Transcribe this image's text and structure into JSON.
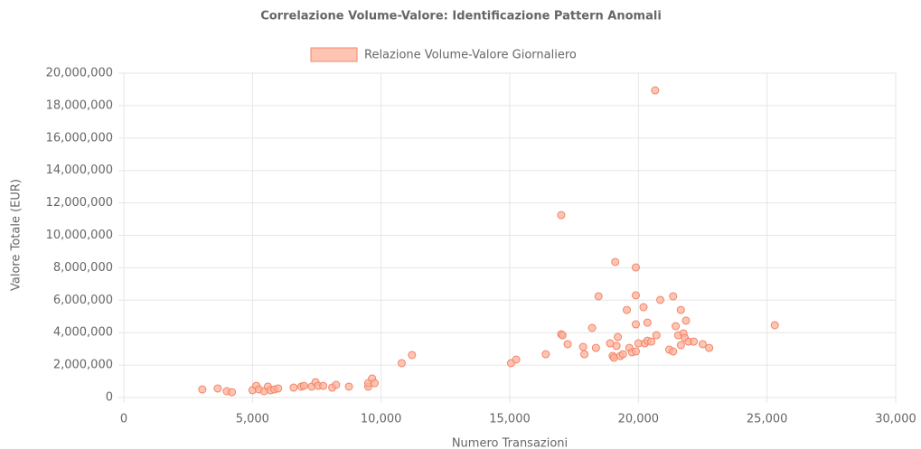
{
  "chart_data": {
    "type": "scatter",
    "title": "Correlazione Volume-Valore: Identificazione Pattern Anomali",
    "x_label": "Numero Transazioni",
    "y_label": "Valore Totale (EUR)",
    "x": [
      3050,
      3650,
      4000,
      4200,
      5000,
      5150,
      5250,
      5450,
      5600,
      5700,
      5850,
      6000,
      6600,
      6900,
      7000,
      7300,
      7450,
      7550,
      7750,
      8100,
      8250,
      8750,
      9500,
      9500,
      9650,
      9750,
      10800,
      11200,
      15050,
      15250,
      16400,
      17000,
      17000,
      17050,
      17250,
      17850,
      17900,
      18200,
      18350,
      18450,
      18900,
      19000,
      19100,
      19050,
      19150,
      19200,
      19300,
      19400,
      19550,
      19650,
      19750,
      19900,
      19900,
      19900,
      19900,
      20000,
      20200,
      20250,
      20350,
      20350,
      20500,
      20650,
      20700,
      20850,
      21200,
      21350,
      21350,
      21450,
      21550,
      21650,
      21650,
      21750,
      21800,
      21850,
      21950,
      22150,
      22500,
      22750,
      25300
    ],
    "series": [
      {
        "name": "Relazione Volume-Valore Giornaliero",
        "color": "#f0856a",
        "fill": "rgba(255,177,153,0.75)",
        "values": [
          500000,
          560000,
          390000,
          330000,
          450000,
          720000,
          500000,
          390000,
          670000,
          450000,
          500000,
          560000,
          610000,
          670000,
          720000,
          670000,
          950000,
          720000,
          720000,
          610000,
          780000,
          670000,
          670000,
          890000,
          1170000,
          890000,
          2120000,
          2620000,
          2120000,
          2340000,
          2670000,
          11250000,
          3900000,
          3840000,
          3290000,
          3120000,
          2670000,
          4290000,
          3060000,
          6240000,
          3340000,
          2560000,
          8360000,
          2450000,
          3180000,
          3730000,
          2560000,
          2670000,
          5400000,
          3060000,
          2790000,
          8020000,
          6300000,
          4510000,
          2840000,
          3340000,
          5570000,
          3340000,
          4620000,
          3500000,
          3450000,
          18940000,
          3840000,
          6020000,
          2950000,
          6240000,
          2840000,
          4400000,
          3840000,
          5400000,
          3230000,
          3950000,
          3680000,
          4740000,
          3450000,
          3450000,
          3290000,
          3060000,
          4460000
        ]
      }
    ],
    "xlim": [
      0,
      30000
    ],
    "xticks": [
      0,
      {
        "value": 5000,
        "label": "5,000"
      },
      {
        "value": 10000,
        "label": "10,000"
      },
      {
        "value": 15000,
        "label": "15,000"
      },
      {
        "value": 20000,
        "label": "20,000"
      },
      {
        "value": 25000,
        "label": "25,000"
      },
      {
        "value": 30000,
        "label": "30,000"
      }
    ],
    "ylim": [
      0,
      20000000
    ],
    "yticks": [
      0,
      {
        "value": 2000000,
        "label": "2,000,000"
      },
      {
        "value": 4000000,
        "label": "4,000,000"
      },
      {
        "value": 6000000,
        "label": "6,000,000"
      },
      {
        "value": 8000000,
        "label": "8,000,000"
      },
      {
        "value": 10000000,
        "label": "10,000,000"
      },
      {
        "value": 12000000,
        "label": "12,000,000"
      },
      {
        "value": 14000000,
        "label": "14,000,000"
      },
      {
        "value": 16000000,
        "label": "16,000,000"
      },
      {
        "value": 18000000,
        "label": "18,000,000"
      },
      {
        "value": 20000000,
        "label": "20,000,000"
      }
    ],
    "grid": true,
    "legend": "top"
  }
}
